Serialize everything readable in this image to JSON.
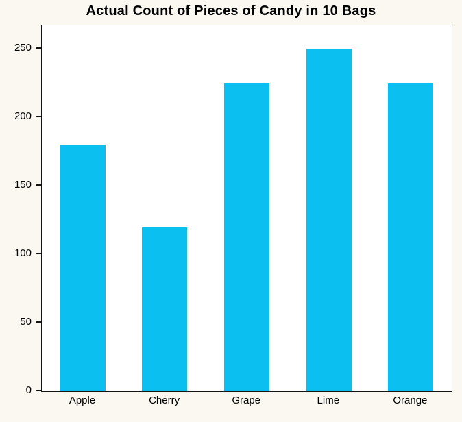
{
  "chart_data": {
    "type": "bar",
    "title": "Actual Count of Pieces of Candy in 10 Bags",
    "categories": [
      "Apple",
      "Cherry",
      "Grape",
      "Lime",
      "Orange"
    ],
    "values": [
      180,
      120,
      225,
      250,
      225
    ],
    "xlabel": "",
    "ylabel": "",
    "ylim": [
      0,
      267
    ],
    "yticks": [
      0,
      50,
      100,
      150,
      200,
      250
    ],
    "bar_color": "#0bc0f0",
    "figure_background": "#faf8f1",
    "plot_background": "#ffffff",
    "axis_color": "#141414",
    "grid": false,
    "legend_position": null
  }
}
